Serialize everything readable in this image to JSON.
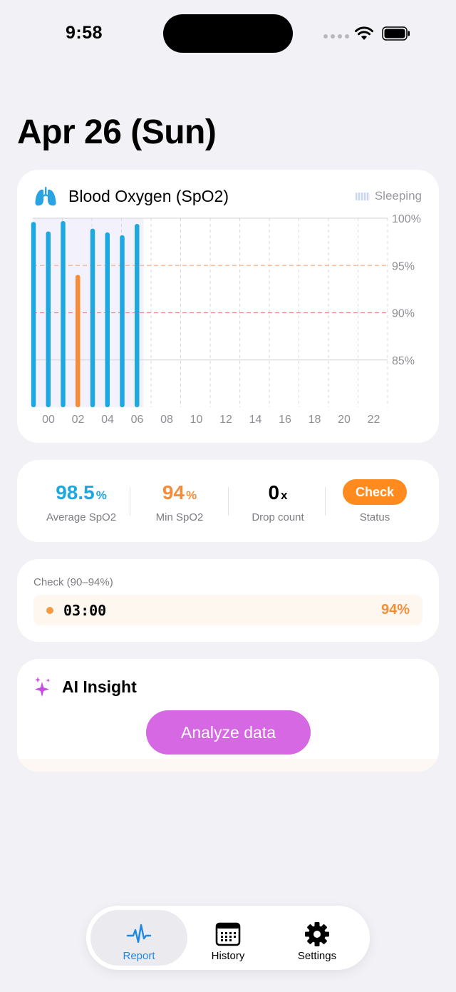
{
  "status_bar": {
    "time": "9:58"
  },
  "page_title": "Apr 26 (Sun)",
  "chart_card": {
    "title": "Blood Oxygen (SpO2)",
    "legend_label": "Sleeping",
    "icon": "lungs-icon"
  },
  "chart_data": {
    "type": "bar",
    "title": "Blood Oxygen (SpO2)",
    "x_tick_labels": [
      "00",
      "02",
      "04",
      "06",
      "08",
      "10",
      "12",
      "14",
      "16",
      "18",
      "20",
      "22"
    ],
    "y_tick_labels": [
      "100%",
      "95%",
      "90%",
      "85%"
    ],
    "y_ticks": [
      100,
      95,
      90,
      85
    ],
    "ylim": [
      80,
      100
    ],
    "xlim": [
      0,
      24
    ],
    "bars": [
      {
        "hour": 0,
        "value": 99.6,
        "color": "#1ea8e0"
      },
      {
        "hour": 1,
        "value": 98.6,
        "color": "#1ea8e0"
      },
      {
        "hour": 2,
        "value": 99.7,
        "color": "#1ea8e0"
      },
      {
        "hour": 3,
        "value": 94.0,
        "color": "#f58c3a"
      },
      {
        "hour": 4,
        "value": 98.9,
        "color": "#1ea8e0"
      },
      {
        "hour": 5,
        "value": 98.5,
        "color": "#1ea8e0"
      },
      {
        "hour": 6,
        "value": 98.2,
        "color": "#1ea8e0"
      },
      {
        "hour": 7,
        "value": 99.4,
        "color": "#1ea8e0"
      }
    ],
    "sleep_range": [
      0,
      7.5
    ],
    "threshold_lines": [
      {
        "value": 95,
        "color": "#f6b48a"
      },
      {
        "value": 90,
        "color": "#ee8a7a"
      }
    ],
    "grid": true
  },
  "stats": [
    {
      "value": "98.5",
      "unit": "%",
      "label": "Average SpO2",
      "color": "#1ea8e0"
    },
    {
      "value": "94",
      "unit": "%",
      "label": "Min SpO2",
      "color": "#f58c3a"
    },
    {
      "value": "0",
      "unit": "x",
      "label": "Drop count",
      "color": "#000000"
    }
  ],
  "status": {
    "label": "Status",
    "badge": "Check"
  },
  "check_card": {
    "title": "Check (90–94%)",
    "time": "03:00",
    "value": "94%"
  },
  "ai_card": {
    "title": "AI Insight",
    "button_label": "Analyze data"
  },
  "tabs": [
    {
      "label": "Report",
      "icon": "heartbeat-icon",
      "active": true
    },
    {
      "label": "History",
      "icon": "calendar-icon",
      "active": false
    },
    {
      "label": "Settings",
      "icon": "gear-icon",
      "active": false
    }
  ],
  "colors": {
    "accent_blue": "#1f88e5",
    "bar_blue": "#1ea8e0",
    "warning_orange": "#ff8b1f",
    "ai_purple": "#d668e3"
  }
}
